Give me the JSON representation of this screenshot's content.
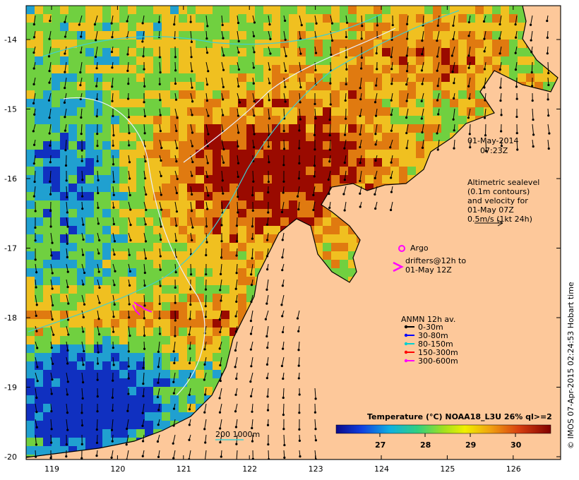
{
  "map": {
    "date_line1": "01-May-2014",
    "date_line2": "07:23Z",
    "altimetry": [
      "Altimetric sealevel",
      "(0.1m contours)",
      "and velocity for",
      "01-May 07Z",
      "0.5m/s (1kt 24h)"
    ],
    "argo_label": "Argo",
    "drifters_line1": "drifters@12h to",
    "drifters_line2": "01-May 12Z",
    "anmn_title": "ANMN 12h av.",
    "depth_legend": [
      {
        "label": "0-30m",
        "color": "#000000"
      },
      {
        "label": "30-80m",
        "color": "#0000ff"
      },
      {
        "label": "80-150m",
        "color": "#00d0d0"
      },
      {
        "label": "150-300m",
        "color": "#ff0000"
      },
      {
        "label": "300-600m",
        "color": "#ff00ff"
      }
    ],
    "isobath_label": "200  1000m",
    "colorbar_title": "Temperature (°C) NOAA18_L3U 26% ql>=2",
    "colorbar_ticks": [
      "27",
      "28",
      "29",
      "30"
    ],
    "credit": "© IMOS 07-Apr-2015 02:24:53 Hobart time",
    "lat_ticks": [
      "-14",
      "-15",
      "-16",
      "-17",
      "-18",
      "-19",
      "-20"
    ],
    "lon_ticks": [
      "119",
      "120",
      "121",
      "122",
      "123",
      "124",
      "125",
      "126"
    ],
    "colors": {
      "land": "#fdc89a",
      "hot": "#9a0a00",
      "warm": "#e07a10",
      "mid": "#f0c020",
      "cool": "#70d040",
      "cold": "#20a0d0",
      "coldest": "#1030c0"
    }
  }
}
